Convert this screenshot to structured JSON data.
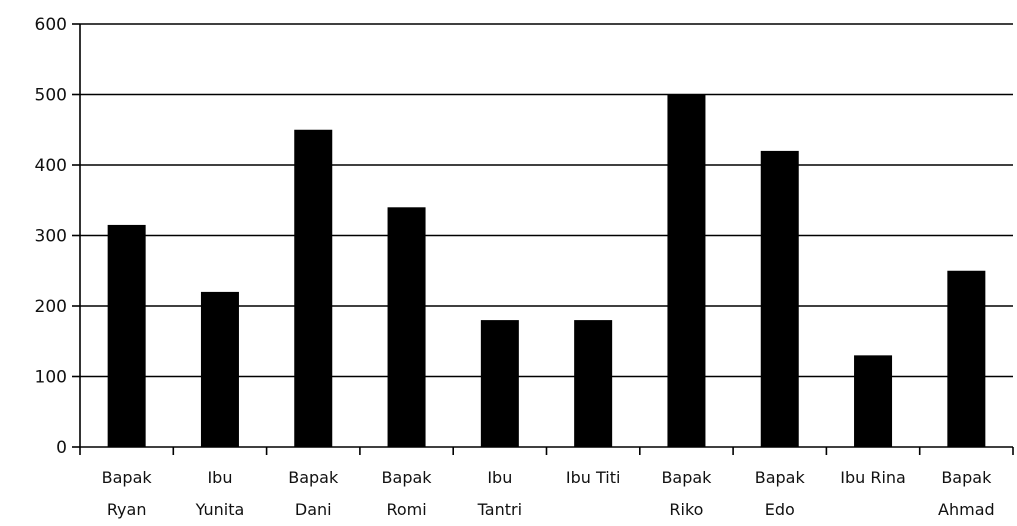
{
  "chart_data": {
    "type": "bar",
    "title": "",
    "xlabel": "",
    "ylabel": "",
    "ylim": [
      0,
      600
    ],
    "yticks": [
      0,
      100,
      200,
      300,
      400,
      500,
      600
    ],
    "grid": true,
    "bar_color": "#000000",
    "grid_color": "#000000",
    "categories": [
      [
        "Bapak",
        "Ryan"
      ],
      [
        "Ibu",
        "Yunita"
      ],
      [
        "Bapak",
        "Dani"
      ],
      [
        "Bapak",
        "Romi"
      ],
      [
        "Ibu",
        "Tantri"
      ],
      [
        "Ibu Titi"
      ],
      [
        "Bapak",
        "Riko"
      ],
      [
        "Bapak",
        "Edo"
      ],
      [
        "Ibu Rina"
      ],
      [
        "Bapak",
        "Ahmad"
      ]
    ],
    "values": [
      315,
      220,
      450,
      340,
      180,
      180,
      500,
      420,
      130,
      250
    ]
  }
}
